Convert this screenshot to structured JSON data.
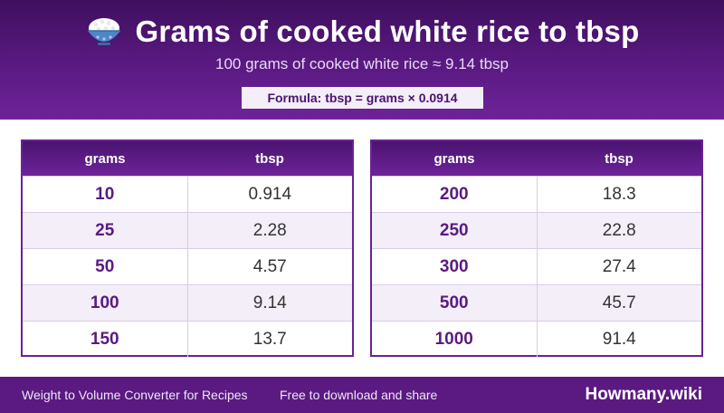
{
  "header": {
    "icon": "rice-bowl-icon",
    "title": "Grams of cooked white rice to tbsp",
    "subtitle": "100 grams of cooked white rice ≈ 9.14 tbsp",
    "formula": "Formula: tbsp = grams × 0.0914"
  },
  "tables": {
    "col_grams": "grams",
    "col_tbsp": "tbsp",
    "left": [
      {
        "grams": "10",
        "tbsp": "0.914"
      },
      {
        "grams": "25",
        "tbsp": "2.28"
      },
      {
        "grams": "50",
        "tbsp": "4.57"
      },
      {
        "grams": "100",
        "tbsp": "9.14"
      },
      {
        "grams": "150",
        "tbsp": "13.7"
      }
    ],
    "right": [
      {
        "grams": "200",
        "tbsp": "18.3"
      },
      {
        "grams": "250",
        "tbsp": "22.8"
      },
      {
        "grams": "300",
        "tbsp": "27.4"
      },
      {
        "grams": "500",
        "tbsp": "45.7"
      },
      {
        "grams": "1000",
        "tbsp": "91.4"
      }
    ]
  },
  "footer": {
    "left_text": "Weight to Volume Converter for Recipes",
    "mid_text": "Free to download and share",
    "brand": "Howmany.wiki"
  },
  "colors": {
    "primary": "#5a1a82",
    "header_dark": "#3f0f5e",
    "row_alt": "#f3eef8"
  }
}
